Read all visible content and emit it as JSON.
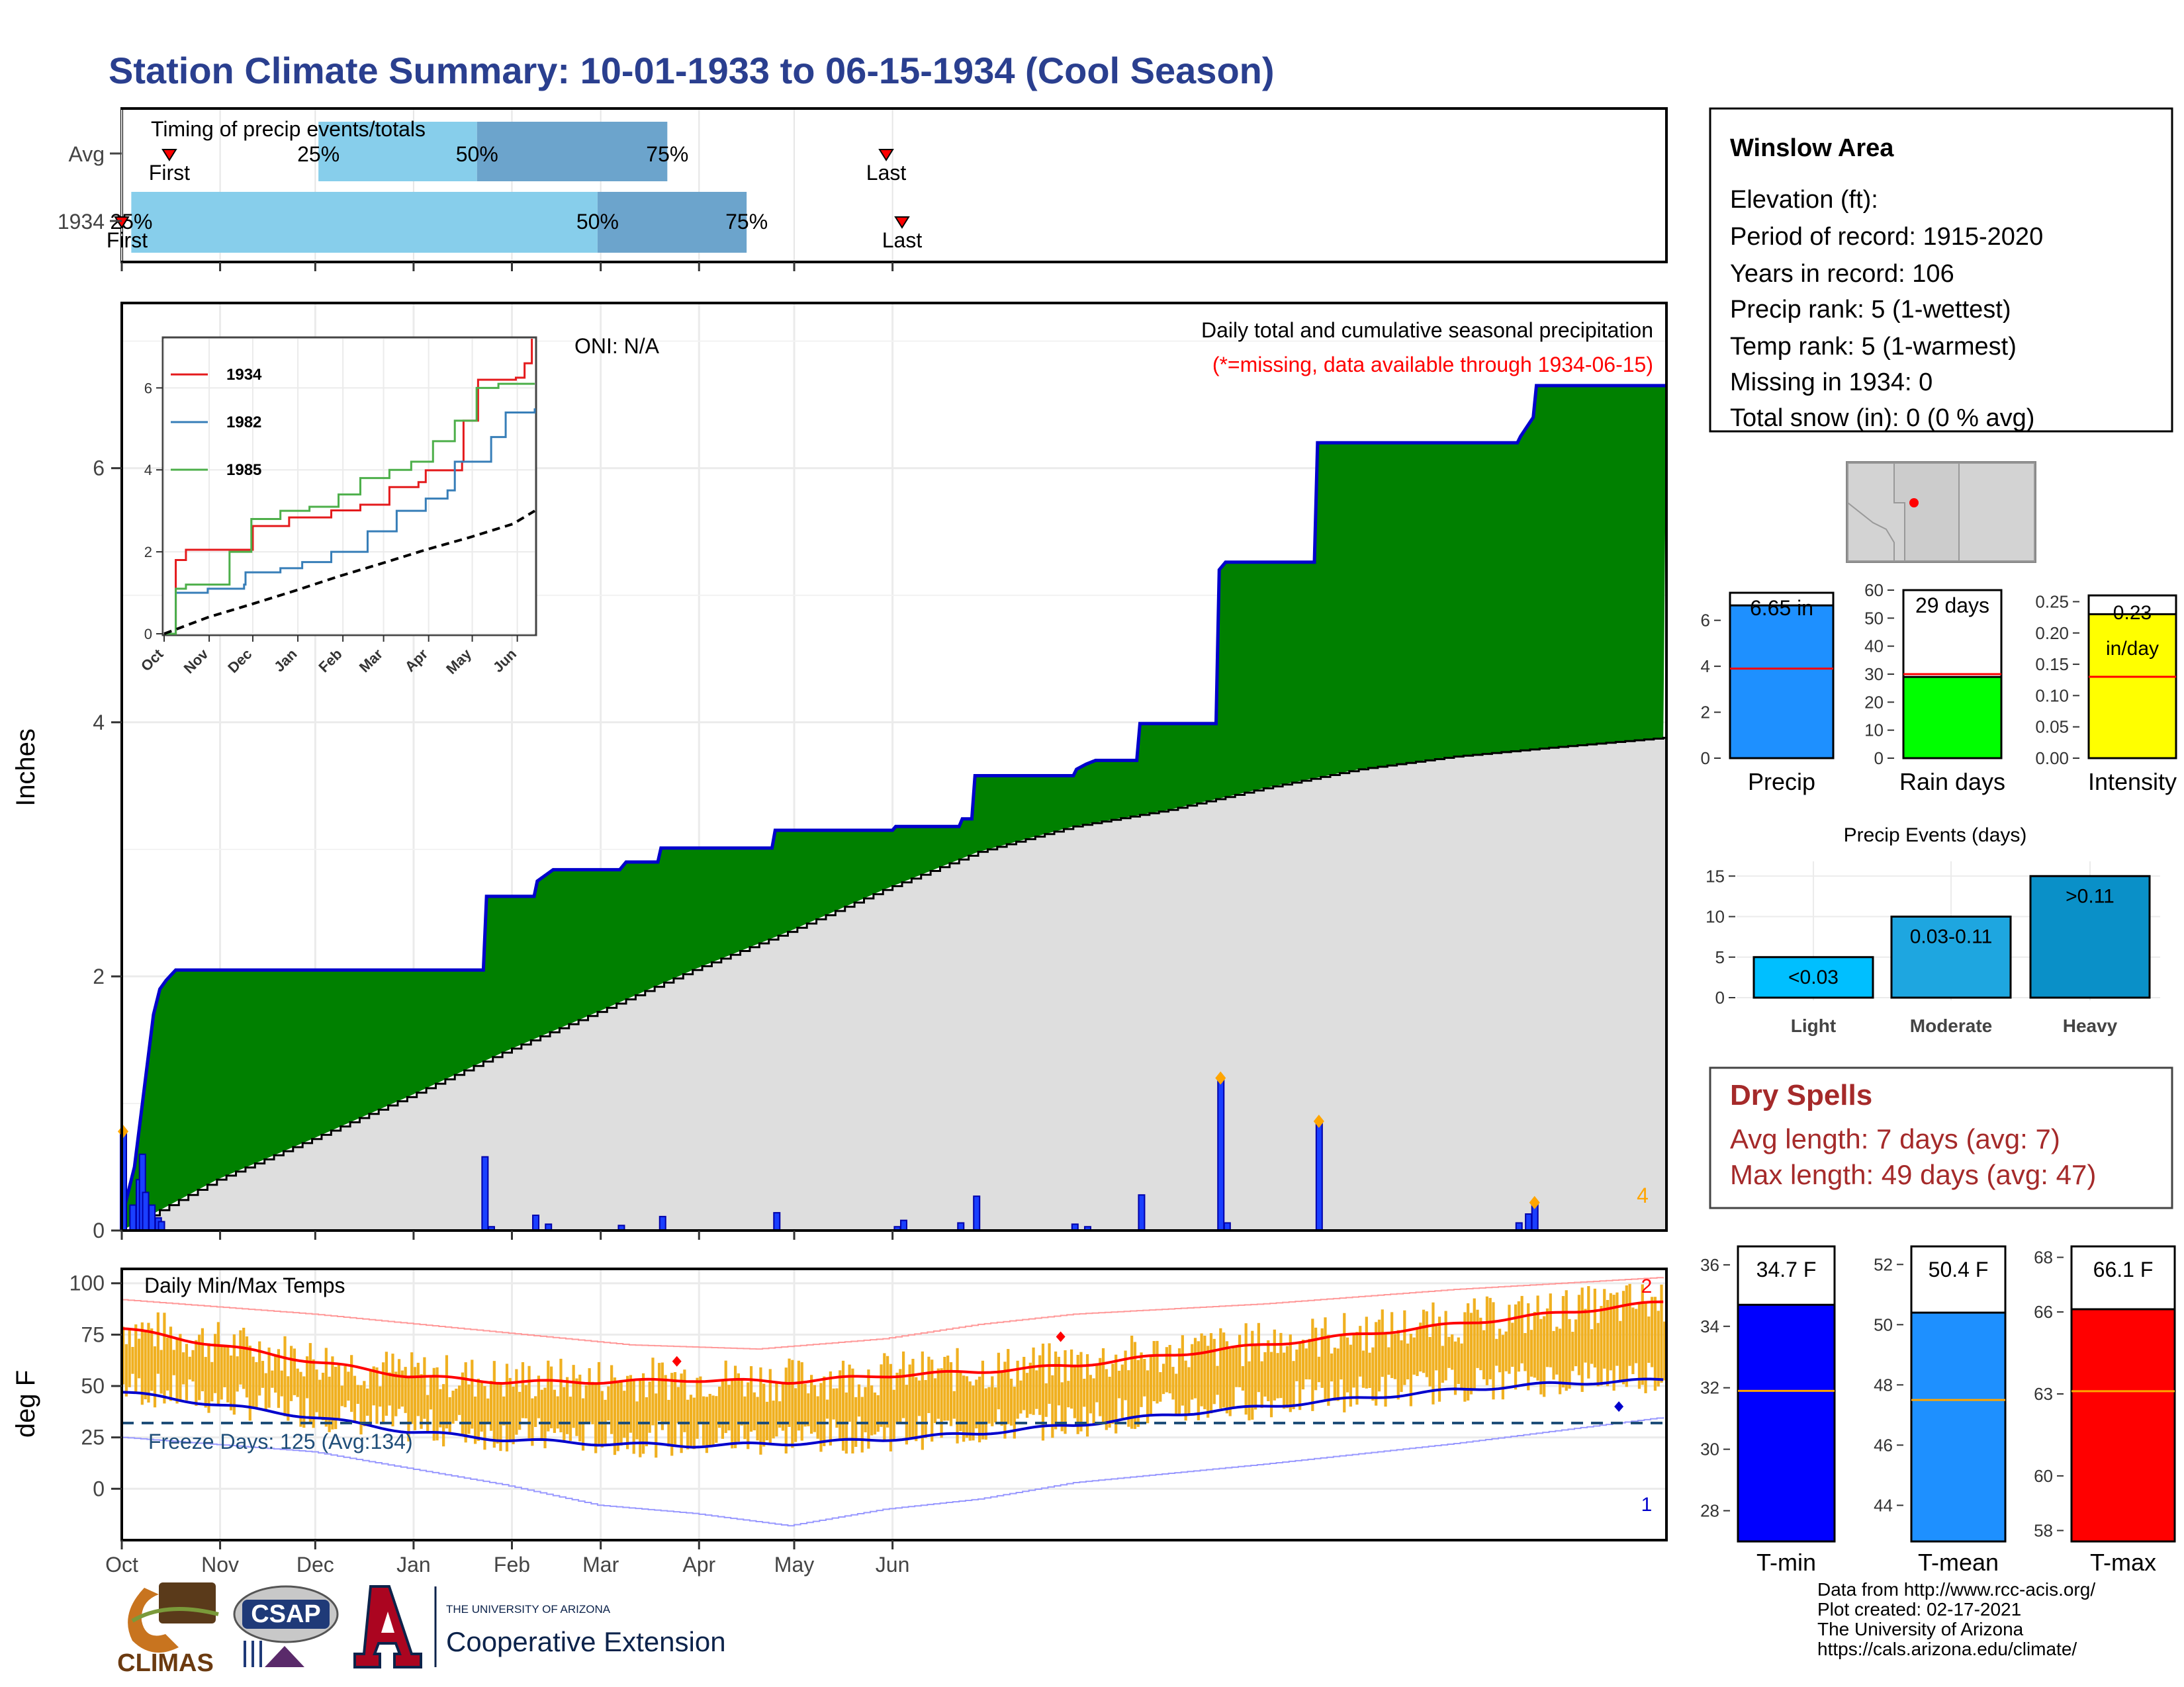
{
  "title": "Station Climate Summary: 10-01-1933 to 06-15-1934 (Cool Season)",
  "colors": {
    "title": "#2a3f8f",
    "q_light": "#87ceeb",
    "q_dark": "#6ca4cc",
    "green": "#008000",
    "blue_outline": "#0000cc",
    "gray_avg": "#dedede",
    "orange_marker": "#ffa500",
    "red": "#ff0000",
    "temp_bar": "#f0b020",
    "dark_red_text": "#a52a2a"
  },
  "timing": {
    "title": "Timing of precip events/totals",
    "rows": [
      {
        "label": "Avg",
        "first_label": "First",
        "last_label": "Last",
        "quartiles": [
          {
            "label": "25%"
          },
          {
            "label": "50%"
          },
          {
            "label": "75%"
          }
        ],
        "first_day": 15,
        "q25_day": 62,
        "q50_day": 112,
        "q75_day": 172,
        "last_day": 241
      },
      {
        "label": "1934",
        "first_label": "First",
        "last_label": "Last",
        "quartiles": [
          {
            "label": "25%"
          },
          {
            "label": "50%"
          },
          {
            "label": "75%"
          }
        ],
        "first_day": 0,
        "q25_day": 3,
        "q50_day": 150,
        "q75_day": 197,
        "last_day": 246
      }
    ]
  },
  "info": {
    "station": "Winslow Area",
    "lines": [
      "Elevation (ft):",
      "Period of record: 1915-2020",
      "Years in record: 106",
      "Precip rank: 5 (1-wettest)",
      "Temp rank: 5 (1-warmest)",
      "Missing in 1934: 0",
      "Total snow (in): 0 (0 % avg)"
    ]
  },
  "precip_panel": {
    "ylabel": "Inches",
    "oni": "ONI: N/A",
    "heading": "Daily total and cumulative seasonal precipitation",
    "note": "(*=missing, data available through 1934-06-15)",
    "corner_value": "4",
    "yticks": [
      "0",
      "2",
      "4",
      "6"
    ]
  },
  "temp_panel": {
    "title": "Daily Min/Max Temps",
    "ylabel": "deg F",
    "freeze": "Freeze Days: 125 (Avg:134)",
    "corner_max": "2",
    "corner_min": "1",
    "yticks": [
      "0",
      "25",
      "50",
      "75",
      "100"
    ]
  },
  "month_labels": [
    "Oct",
    "Nov",
    "Dec",
    "Jan",
    "Feb",
    "Mar",
    "Apr",
    "May",
    "Jun"
  ],
  "bar_charts": {
    "precip": {
      "label": "Precip",
      "value_label": "6.65 in",
      "value": 6.65,
      "avg": 3.9,
      "yticks": [
        "0",
        "2",
        "4",
        "6"
      ]
    },
    "raindays": {
      "label": "Rain days",
      "value_label": "29 days",
      "value": 29,
      "avg": 30,
      "yticks": [
        "0",
        "10",
        "20",
        "30",
        "40",
        "50",
        "60"
      ]
    },
    "intensity": {
      "label": "Intensity",
      "value_label": "0.23 in/day",
      "value_line1": "0.23",
      "value_line2": "in/day",
      "value": 0.23,
      "avg": 0.13,
      "yticks": [
        "0.00",
        "0.05",
        "0.10",
        "0.15",
        "0.20",
        "0.25"
      ]
    }
  },
  "events": {
    "title": "Precip Events (days)",
    "categories": [
      "Light",
      "Moderate",
      "Heavy"
    ],
    "labels": [
      "<0.03",
      "0.03-0.11",
      ">0.11"
    ],
    "values": [
      5,
      10,
      15
    ],
    "yticks": [
      "0",
      "5",
      "10",
      "15"
    ]
  },
  "dry_spells": {
    "title": "Dry Spells",
    "avg": "Avg length: 7 days (avg: 7)",
    "max": "Max length: 49 days (avg: 47)"
  },
  "temp_bars": {
    "tmin": {
      "label": "T-min",
      "value_label": "34.7 F",
      "value": 34.7,
      "avg": 31.9,
      "yticks": [
        "28",
        "30",
        "32",
        "34",
        "36"
      ]
    },
    "tmean": {
      "label": "T-mean",
      "value_label": "50.4 F",
      "value": 50.4,
      "avg": 47.5,
      "yticks": [
        "44",
        "46",
        "48",
        "50",
        "52"
      ]
    },
    "tmax": {
      "label": "T-max",
      "value_label": "66.1 F",
      "value": 66.1,
      "avg": 63.1,
      "yticks": [
        "58",
        "60",
        "63",
        "66",
        "68"
      ]
    }
  },
  "credits": [
    "Data from http://www.rcc-acis.org/",
    "Plot created: 02-17-2021",
    "The University of Arizona",
    "https://cals.arizona.edu/climate/"
  ],
  "logos": {
    "climas": "CLIMAS",
    "csap": "CSAP",
    "ua_small": "THE UNIVERSITY OF ARIZONA",
    "ua_big": "Cooperative Extension"
  },
  "chart_data": [
    {
      "type": "area",
      "title": "Daily total and cumulative seasonal precipitation",
      "ylabel": "Inches",
      "ylim": [
        0,
        7.3
      ],
      "x_unit": "days since Oct 1",
      "cumulative_1934": [
        [
          0,
          0
        ],
        [
          1,
          0.2
        ],
        [
          4,
          0.5
        ],
        [
          7,
          1.1
        ],
        [
          9,
          1.5
        ],
        [
          10,
          1.7
        ],
        [
          12,
          1.9
        ],
        [
          14,
          1.97
        ],
        [
          17,
          2.05
        ],
        [
          114,
          2.05
        ],
        [
          115,
          2.63
        ],
        [
          130,
          2.63
        ],
        [
          131,
          2.75
        ],
        [
          136,
          2.84
        ],
        [
          157,
          2.84
        ],
        [
          159,
          2.9
        ],
        [
          169,
          2.9
        ],
        [
          170,
          3.01
        ],
        [
          205,
          3.01
        ],
        [
          206,
          3.15
        ],
        [
          243,
          3.15
        ],
        [
          244,
          3.18
        ],
        [
          264,
          3.18
        ],
        [
          265,
          3.24
        ],
        [
          268,
          3.24
        ],
        [
          269,
          3.58
        ],
        [
          300,
          3.58
        ],
        [
          301,
          3.63
        ],
        [
          304,
          3.67
        ],
        [
          307,
          3.7
        ],
        [
          320,
          3.7
        ],
        [
          321,
          3.99
        ],
        [
          345,
          3.99
        ],
        [
          346,
          5.2
        ],
        [
          348,
          5.26
        ],
        [
          376,
          5.26
        ],
        [
          377,
          6.2
        ],
        [
          440,
          6.2
        ],
        [
          441,
          6.25
        ],
        [
          445,
          6.4
        ],
        [
          446,
          6.65
        ],
        [
          487,
          6.65
        ]
      ],
      "cumulative_avg": [
        [
          0,
          0
        ],
        [
          30,
          0.4
        ],
        [
          60,
          0.72
        ],
        [
          90,
          1.05
        ],
        [
          120,
          1.4
        ],
        [
          150,
          1.72
        ],
        [
          180,
          2.05
        ],
        [
          210,
          2.35
        ],
        [
          240,
          2.68
        ],
        [
          270,
          2.98
        ],
        [
          300,
          3.18
        ],
        [
          330,
          3.31
        ],
        [
          360,
          3.48
        ],
        [
          390,
          3.63
        ],
        [
          420,
          3.73
        ],
        [
          450,
          3.8
        ],
        [
          487,
          3.88
        ]
      ],
      "daily_1934": [
        [
          0,
          0.78
        ],
        [
          3,
          0.2
        ],
        [
          5,
          0.4
        ],
        [
          6,
          0.6
        ],
        [
          7,
          0.3
        ],
        [
          9,
          0.2
        ],
        [
          11,
          0.1
        ],
        [
          12,
          0.07
        ],
        [
          114,
          0.58
        ],
        [
          116,
          0.03
        ],
        [
          130,
          0.12
        ],
        [
          134,
          0.05
        ],
        [
          157,
          0.04
        ],
        [
          170,
          0.11
        ],
        [
          206,
          0.14
        ],
        [
          244,
          0.03
        ],
        [
          246,
          0.08
        ],
        [
          264,
          0.06
        ],
        [
          269,
          0.27
        ],
        [
          300,
          0.05
        ],
        [
          304,
          0.03
        ],
        [
          321,
          0.28
        ],
        [
          346,
          1.2
        ],
        [
          348,
          0.06
        ],
        [
          377,
          0.86
        ],
        [
          440,
          0.06
        ],
        [
          443,
          0.13
        ],
        [
          445,
          0.22
        ]
      ],
      "daily_markers": [
        [
          0,
          0.78
        ],
        [
          346,
          1.2
        ],
        [
          377,
          0.86
        ],
        [
          445,
          0.22
        ]
      ],
      "xlim": [
        0,
        487
      ]
    },
    {
      "type": "line",
      "title": "inset cumulative precipitation",
      "series": [
        {
          "name": "1934",
          "points": [
            [
              0,
              0
            ],
            [
              8,
              1.8
            ],
            [
              15,
              2.05
            ],
            [
              60,
              2.05
            ],
            [
              61,
              2.63
            ],
            [
              85,
              2.63
            ],
            [
              86,
              2.84
            ],
            [
              115,
              3.01
            ],
            [
              135,
              3.15
            ],
            [
              155,
              3.58
            ],
            [
              175,
              3.7
            ],
            [
              180,
              3.99
            ],
            [
              205,
              4.2
            ],
            [
              206,
              5.2
            ],
            [
              216,
              6.2
            ],
            [
              242,
              6.25
            ],
            [
              248,
              6.6
            ],
            [
              253,
              7.2
            ]
          ]
        },
        {
          "name": "1982",
          "points": [
            [
              0,
              0
            ],
            [
              8,
              1.0
            ],
            [
              30,
              1.1
            ],
            [
              55,
              1.2
            ],
            [
              56,
              1.5
            ],
            [
              80,
              1.6
            ],
            [
              95,
              1.75
            ],
            [
              115,
              2.0
            ],
            [
              140,
              2.5
            ],
            [
              160,
              3.0
            ],
            [
              180,
              3.3
            ],
            [
              195,
              3.5
            ],
            [
              200,
              4.2
            ],
            [
              225,
              4.8
            ],
            [
              235,
              5.4
            ],
            [
              255,
              5.5
            ]
          ]
        },
        {
          "name": "1985",
          "points": [
            [
              0,
              0
            ],
            [
              8,
              1.1
            ],
            [
              15,
              1.2
            ],
            [
              40,
              1.2
            ],
            [
              45,
              2.0
            ],
            [
              60,
              2.8
            ],
            [
              80,
              3.0
            ],
            [
              100,
              3.1
            ],
            [
              120,
              3.4
            ],
            [
              135,
              3.8
            ],
            [
              155,
              4.0
            ],
            [
              170,
              4.2
            ],
            [
              185,
              4.7
            ],
            [
              200,
              5.2
            ],
            [
              215,
              6.0
            ],
            [
              230,
              6.1
            ],
            [
              255,
              6.1
            ]
          ]
        },
        {
          "name": "avg",
          "points": [
            [
              0,
              0
            ],
            [
              30,
              0.4
            ],
            [
              60,
              0.72
            ],
            [
              90,
              1.05
            ],
            [
              120,
              1.4
            ],
            [
              150,
              1.72
            ],
            [
              180,
              2.05
            ],
            [
              210,
              2.35
            ],
            [
              240,
              2.68
            ],
            [
              255,
              3.0
            ]
          ]
        }
      ],
      "ylim": [
        0,
        7.2
      ],
      "yticks": [
        "0",
        "2",
        "4",
        "6"
      ],
      "xlabels": [
        "Oct",
        "Nov",
        "Dec",
        "Jan",
        "Feb",
        "Mar",
        "Apr",
        "May",
        "Jun"
      ]
    },
    {
      "type": "line",
      "title": "Daily Min/Max Temps",
      "ylabel": "deg F",
      "ylim": [
        -25,
        107
      ],
      "freeze_line": 32,
      "avg_max": [
        [
          0,
          78
        ],
        [
          30,
          70
        ],
        [
          60,
          62
        ],
        [
          90,
          55
        ],
        [
          120,
          52
        ],
        [
          150,
          52
        ],
        [
          180,
          53
        ],
        [
          210,
          52
        ],
        [
          240,
          55
        ],
        [
          270,
          57
        ],
        [
          300,
          60
        ],
        [
          330,
          65
        ],
        [
          360,
          70
        ],
        [
          390,
          75
        ],
        [
          420,
          80
        ],
        [
          450,
          85
        ],
        [
          487,
          91
        ]
      ],
      "avg_min": [
        [
          0,
          47
        ],
        [
          30,
          41
        ],
        [
          60,
          35
        ],
        [
          90,
          28
        ],
        [
          120,
          24
        ],
        [
          150,
          22
        ],
        [
          180,
          21
        ],
        [
          210,
          22
        ],
        [
          240,
          24
        ],
        [
          270,
          27
        ],
        [
          300,
          31
        ],
        [
          330,
          36
        ],
        [
          360,
          40
        ],
        [
          390,
          44
        ],
        [
          420,
          48
        ],
        [
          450,
          51
        ],
        [
          487,
          53
        ]
      ],
      "record_max": [
        [
          0,
          92
        ],
        [
          60,
          85
        ],
        [
          120,
          76
        ],
        [
          160,
          70
        ],
        [
          200,
          68
        ],
        [
          240,
          73
        ],
        [
          270,
          80
        ],
        [
          300,
          85
        ],
        [
          360,
          90
        ],
        [
          420,
          97
        ],
        [
          487,
          103
        ]
      ],
      "record_min": [
        [
          0,
          25
        ],
        [
          60,
          18
        ],
        [
          120,
          2
        ],
        [
          150,
          -8
        ],
        [
          180,
          -12
        ],
        [
          210,
          -18
        ],
        [
          240,
          -10
        ],
        [
          270,
          -5
        ],
        [
          300,
          3
        ],
        [
          360,
          12
        ],
        [
          420,
          22
        ],
        [
          487,
          35
        ]
      ],
      "markers": [
        [
          175,
          62
        ],
        [
          296,
          74
        ],
        [
          472,
          40
        ]
      ]
    }
  ]
}
